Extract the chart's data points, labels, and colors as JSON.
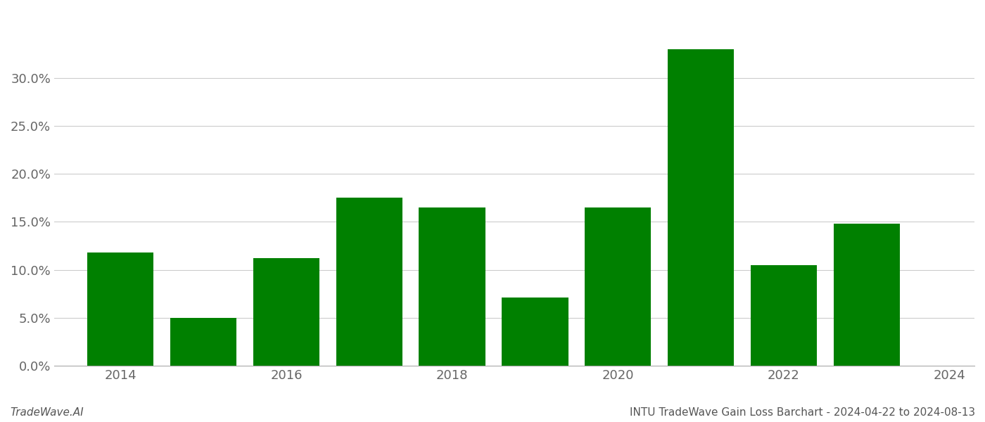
{
  "years": [
    2014,
    2015,
    2016,
    2017,
    2018,
    2019,
    2020,
    2021,
    2022,
    2023
  ],
  "values": [
    0.118,
    0.05,
    0.112,
    0.175,
    0.165,
    0.071,
    0.165,
    0.33,
    0.105,
    0.148
  ],
  "bar_color": "#008000",
  "background_color": "#ffffff",
  "grid_color": "#cccccc",
  "title": "INTU TradeWave Gain Loss Barchart - 2024-04-22 to 2024-08-13",
  "watermark": "TradeWave.AI",
  "ylim_min": 0.0,
  "ylim_max": 0.37,
  "yticks": [
    0.0,
    0.05,
    0.1,
    0.15,
    0.2,
    0.25,
    0.3
  ],
  "title_fontsize": 11,
  "tick_fontsize": 13,
  "watermark_fontsize": 11,
  "bar_width": 0.8
}
